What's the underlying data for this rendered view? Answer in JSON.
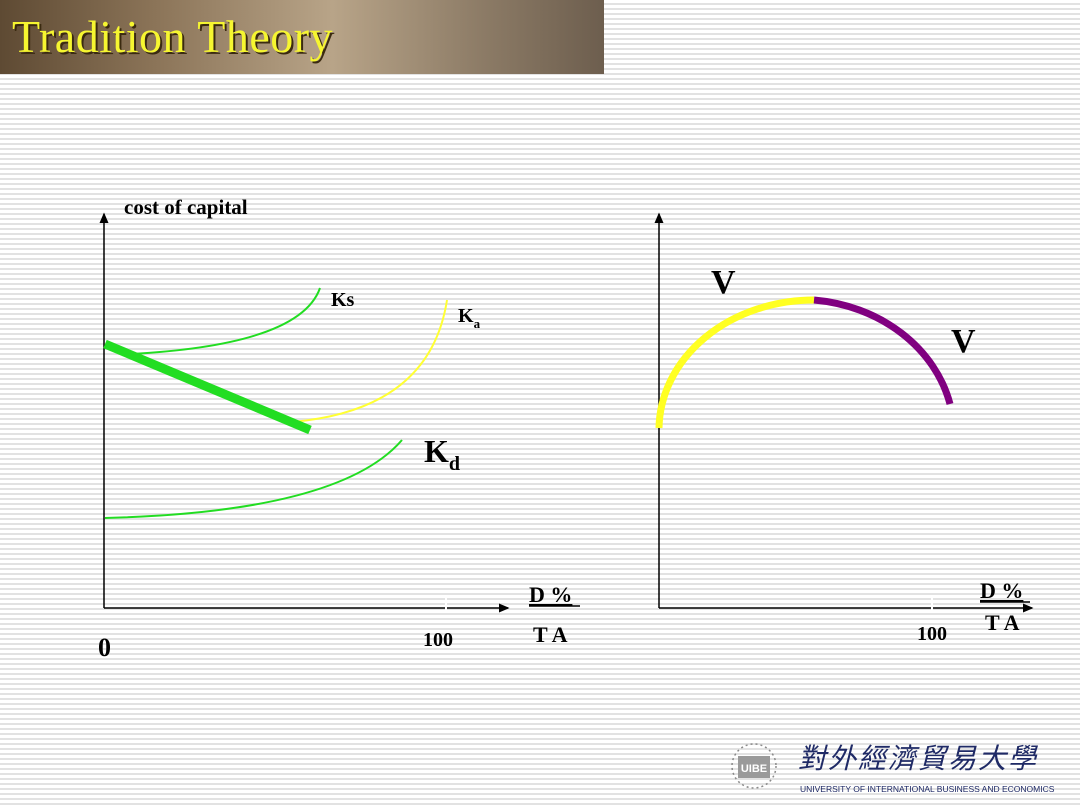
{
  "slide": {
    "title": "Tradition Theory"
  },
  "left_chart": {
    "y_axis_label": "cost of capital",
    "origin_label": "0",
    "x_tick_label": "100",
    "x_axis_label_top": "D %",
    "x_axis_label_bottom": "T A",
    "curves": {
      "ks": {
        "label": "Ks",
        "color": "#22dd22"
      },
      "ka": {
        "label_main": "K",
        "label_sub": "a",
        "color": "#ffff33"
      },
      "kd": {
        "label_main": "K",
        "label_sub": "d",
        "color": "#22dd22"
      },
      "ka_declining": {
        "color": "#22dd22"
      }
    }
  },
  "right_chart": {
    "label_v_left": "V",
    "label_v_right": "V",
    "x_tick_label": "100",
    "x_axis_label_top": "D %",
    "x_axis_label_bottom": "T A",
    "arc_colors": {
      "rising": "#ffff22",
      "falling": "#800080"
    }
  },
  "logo": {
    "chinese_name": "對外經濟貿易大學",
    "english_name": "UNIVERSITY OF INTERNATIONAL BUSINESS AND ECONOMICS",
    "emblem_text": "UIBE"
  }
}
